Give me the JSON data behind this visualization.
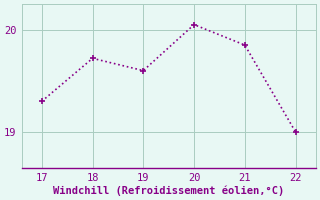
{
  "x": [
    17,
    18,
    19,
    20,
    21,
    22
  ],
  "y": [
    19.3,
    19.72,
    19.6,
    20.05,
    19.85,
    19.0
  ],
  "line_color": "#880088",
  "marker": "+",
  "marker_size": 5,
  "marker_linewidth": 1.2,
  "background_color": "#e8f8f4",
  "grid_color": "#aaccc0",
  "xlabel": "Windchill (Refroidissement éolien,°C)",
  "xlabel_color": "#880088",
  "xlabel_fontsize": 7.5,
  "tick_color": "#880088",
  "tick_fontsize": 7.5,
  "xlim": [
    16.6,
    22.4
  ],
  "ylim": [
    18.65,
    20.25
  ],
  "yticks": [
    19,
    20
  ],
  "xticks": [
    17,
    18,
    19,
    20,
    21,
    22
  ]
}
